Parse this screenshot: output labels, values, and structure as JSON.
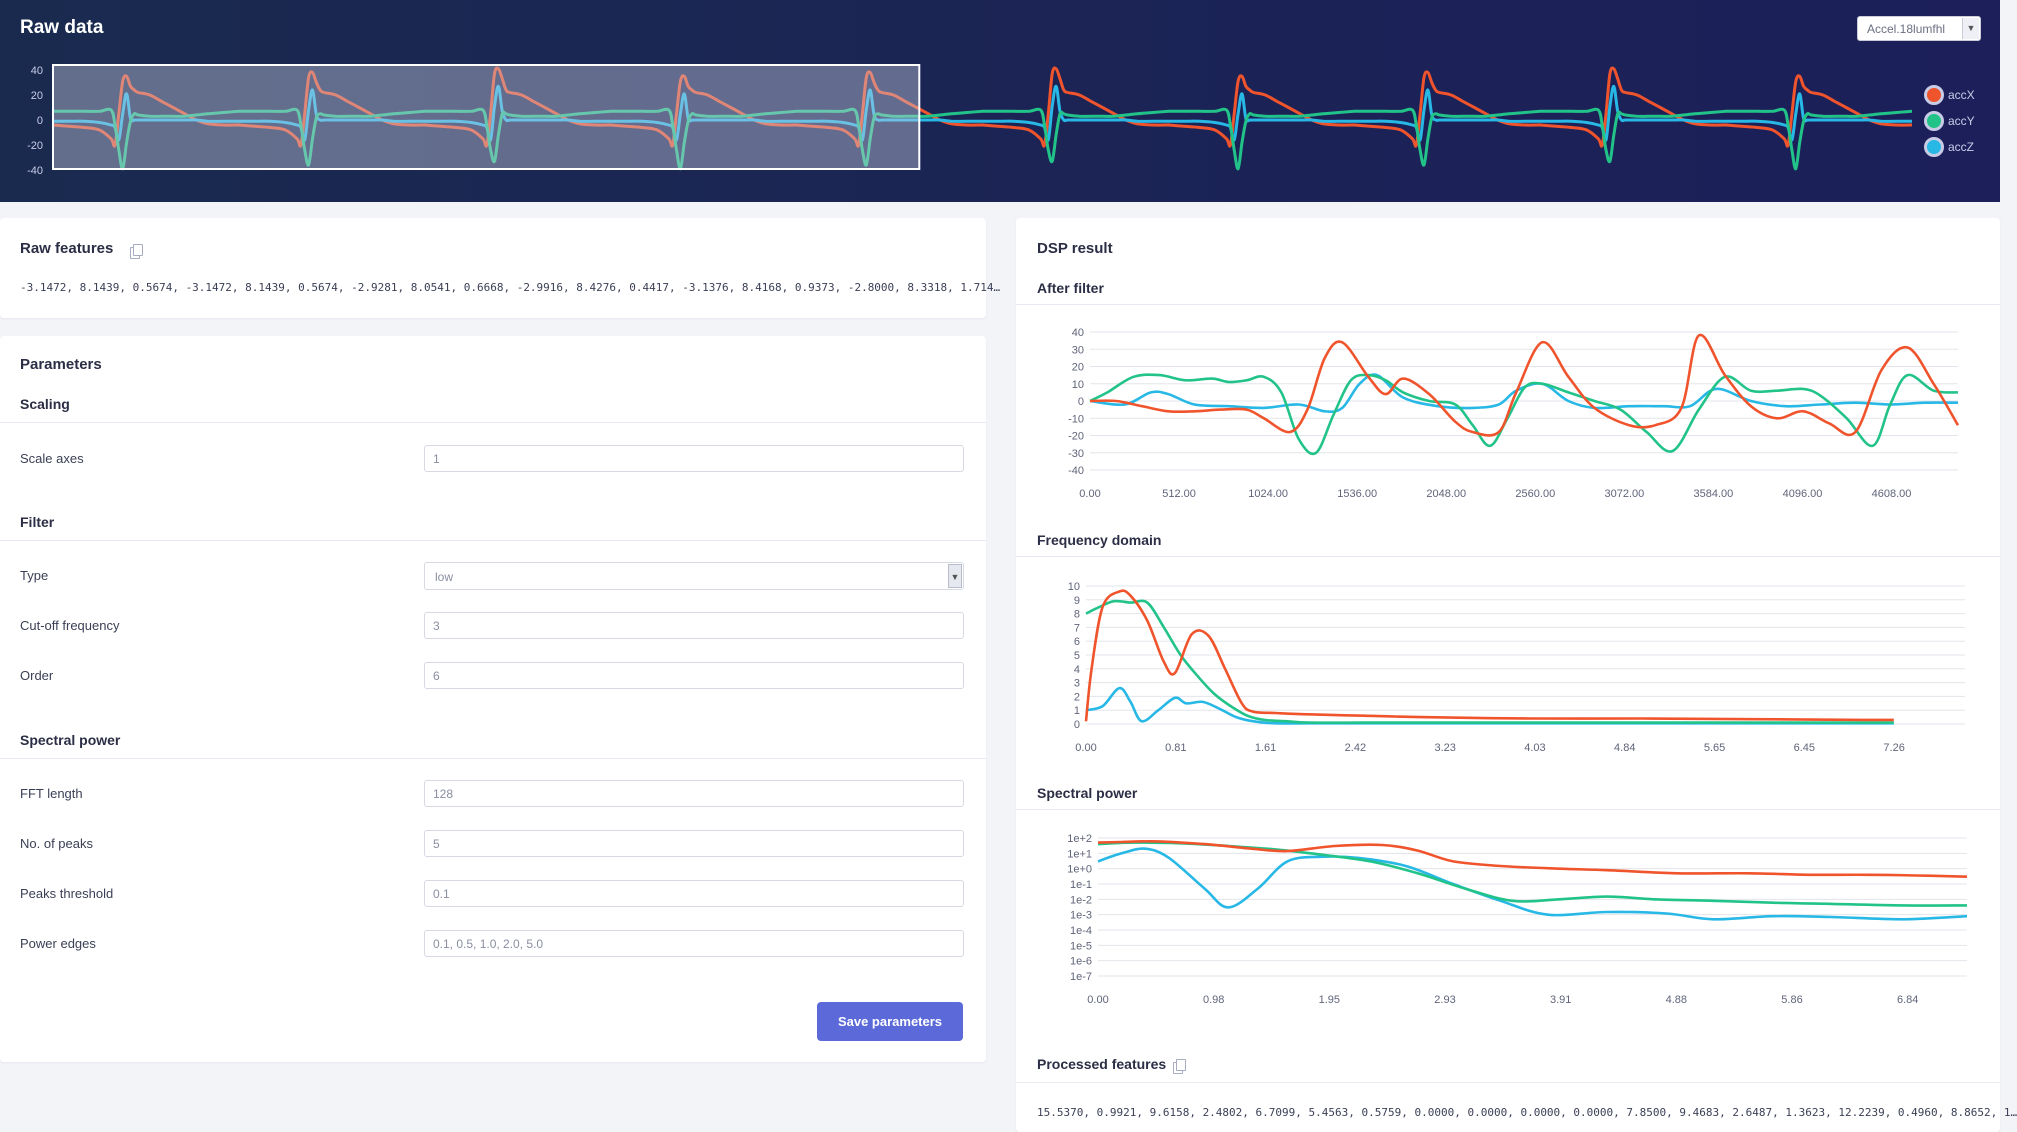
{
  "raw_data": {
    "title": "Raw data",
    "sample_select": "Accel.18lumfhl",
    "legend": [
      {
        "label": "accX",
        "color": "#f0542c"
      },
      {
        "label": "accY",
        "color": "#22c389"
      },
      {
        "label": "accZ",
        "color": "#27b8e6"
      }
    ]
  },
  "raw_features": {
    "title": "Raw features",
    "values": "-3.1472, 8.1439, 0.5674, -3.1472, 8.1439, 0.5674, -2.9281, 8.0541, 0.6668, -2.9916, 8.4276, 0.4417, -3.1376, 8.4168, 0.9373, -2.8000, 8.3318, 1.714…"
  },
  "parameters": {
    "title": "Parameters",
    "scaling": {
      "title": "Scaling",
      "scale_axes": {
        "label": "Scale axes",
        "value": "1"
      }
    },
    "filter": {
      "title": "Filter",
      "type": {
        "label": "Type",
        "value": "low"
      },
      "cutoff": {
        "label": "Cut-off frequency",
        "value": "3"
      },
      "order": {
        "label": "Order",
        "value": "6"
      }
    },
    "spectral_power": {
      "title": "Spectral power",
      "fft_length": {
        "label": "FFT length",
        "value": "128"
      },
      "num_peaks": {
        "label": "No. of peaks",
        "value": "5"
      },
      "peaks_threshold": {
        "label": "Peaks threshold",
        "value": "0.1"
      },
      "power_edges": {
        "label": "Power edges",
        "value": "0.1, 0.5, 1.0, 2.0, 5.0"
      }
    },
    "save_label": "Save parameters"
  },
  "dsp_result": {
    "title": "DSP result",
    "processed_features": {
      "title": "Processed features",
      "values": "15.5370, 0.9921, 9.6158, 2.4802, 6.7099, 5.4563, 0.5759, 0.0000, 0.0000, 0.0000, 0.0000, 7.8500, 9.4683, 2.6487, 1.3623, 12.2239, 0.4960, 8.8652, 1…"
    }
  },
  "chart_data": [
    {
      "type": "line",
      "title": "Raw data",
      "ylim": [
        -40,
        40
      ],
      "y_ticks": [
        "40",
        "20",
        "0",
        "-20",
        "-40"
      ],
      "series": [
        {
          "name": "accX",
          "color": "#f0542c"
        },
        {
          "name": "accY",
          "color": "#22c389"
        },
        {
          "name": "accZ",
          "color": "#27b8e6"
        }
      ],
      "x": [
        0,
        4,
        8,
        12,
        15,
        16,
        17,
        18,
        19,
        20,
        21,
        22,
        25,
        28,
        31,
        34,
        37,
        40,
        44,
        48
      ],
      "y_pattern": {
        "accX": [
          -4,
          -5,
          -6,
          -8,
          -15,
          -20,
          5,
          34,
          38,
          30,
          24,
          22,
          20,
          15,
          10,
          5,
          0,
          -3,
          -4,
          -4
        ],
        "accY": [
          7,
          7,
          7,
          7,
          8,
          -4,
          -24,
          -36,
          -15,
          2,
          5,
          4,
          3,
          3,
          3,
          3,
          4,
          5,
          6,
          7
        ],
        "accZ": [
          -1,
          -1,
          -1,
          -2,
          -4,
          -6,
          -16,
          8,
          24,
          4,
          0,
          0,
          0,
          0,
          0,
          0,
          0,
          -1,
          -1,
          -1
        ]
      },
      "pattern_period": 48,
      "x_max": 480,
      "selection": [
        0,
        0.466
      ],
      "grid": false
    },
    {
      "type": "line",
      "title": "After filter",
      "categories": [
        "0.00",
        "512.00",
        "1024.00",
        "1536.00",
        "2048.00",
        "2560.00",
        "3072.00",
        "3584.00",
        "4096.00",
        "4608.00"
      ],
      "ylim": [
        -40,
        40
      ],
      "y_ticks": [
        "40",
        "30",
        "20",
        "10",
        "0",
        "-10",
        "-20",
        "-30",
        "-40"
      ],
      "grid": true,
      "series": [
        {
          "name": "accX",
          "color": "#f0542c",
          "x": [
            0,
            150,
            300,
            450,
            600,
            750,
            900,
            1000,
            1150,
            1250,
            1350,
            1450,
            1600,
            1700,
            1800,
            1950,
            2100,
            2200,
            2350,
            2450,
            2600,
            2750,
            2900,
            3100,
            3250,
            3400,
            3500,
            3650,
            3800,
            3950,
            4100,
            4250,
            4400,
            4550,
            4700,
            4850,
            4990
          ],
          "y": [
            0,
            0,
            -3,
            -6,
            -6,
            -5,
            -5,
            -10,
            -18,
            -5,
            25,
            34,
            14,
            4,
            13,
            4,
            -12,
            -18,
            -18,
            5,
            34,
            14,
            -4,
            -14,
            -14,
            -4,
            38,
            15,
            -3,
            -10,
            -6,
            -13,
            -18,
            18,
            31,
            10,
            -14
          ]
        },
        {
          "name": "accY",
          "color": "#22c389",
          "x": [
            0,
            100,
            250,
            400,
            550,
            700,
            800,
            900,
            1000,
            1100,
            1200,
            1300,
            1400,
            1500,
            1600,
            1700,
            1800,
            1950,
            2100,
            2200,
            2300,
            2400,
            2500,
            2600,
            2750,
            2900,
            3050,
            3200,
            3350,
            3500,
            3650,
            3800,
            3950,
            4100,
            4200,
            4350,
            4500,
            4600,
            4700,
            4850,
            4990
          ],
          "y": [
            0,
            5,
            14,
            15,
            12,
            13,
            11,
            12,
            14,
            5,
            -22,
            -30,
            -8,
            12,
            15,
            12,
            5,
            0,
            -2,
            -14,
            -26,
            -10,
            8,
            10,
            5,
            0,
            -5,
            -18,
            -29,
            -5,
            14,
            6,
            6,
            7,
            3,
            -10,
            -26,
            -2,
            15,
            6,
            5
          ]
        },
        {
          "name": "accZ",
          "color": "#27b8e6",
          "x": [
            0,
            200,
            350,
            450,
            600,
            800,
            1000,
            1200,
            1350,
            1450,
            1550,
            1650,
            1800,
            2000,
            2200,
            2350,
            2450,
            2600,
            2750,
            2900,
            3100,
            3300,
            3450,
            3600,
            3800,
            4000,
            4200,
            4400,
            4600,
            4800,
            4990
          ],
          "y": [
            0,
            -2,
            5,
            4,
            -2,
            -3,
            -4,
            -2,
            -6,
            -4,
            10,
            15,
            2,
            -3,
            -4,
            -2,
            6,
            10,
            0,
            -4,
            -3,
            -3,
            -3,
            7,
            0,
            -3,
            -2,
            -1,
            -2,
            -1,
            -1
          ]
        }
      ]
    },
    {
      "type": "line",
      "title": "Frequency domain",
      "categories": [
        "0.00",
        "0.81",
        "1.61",
        "2.42",
        "3.23",
        "4.03",
        "4.84",
        "5.65",
        "6.45",
        "7.26"
      ],
      "ylim": [
        0,
        10
      ],
      "y_ticks": [
        "10",
        "9",
        "8",
        "7",
        "6",
        "5",
        "4",
        "3",
        "2",
        "1",
        "0"
      ],
      "grid": true,
      "series": [
        {
          "name": "accX",
          "color": "#f0542c",
          "x": [
            0,
            0.05,
            0.15,
            0.3,
            0.4,
            0.55,
            0.7,
            0.8,
            0.95,
            1.1,
            1.25,
            1.4,
            1.5,
            1.7,
            2.0,
            2.5,
            3.0,
            4.0,
            5.0,
            6.0,
            7.0,
            7.26
          ],
          "y": [
            0.2,
            4,
            8.5,
            9.6,
            9.3,
            7.5,
            4.5,
            3.7,
            6.5,
            6.4,
            4,
            1.5,
            0.9,
            0.8,
            0.7,
            0.6,
            0.5,
            0.4,
            0.4,
            0.35,
            0.3,
            0.3
          ]
        },
        {
          "name": "accY",
          "color": "#22c389",
          "x": [
            0,
            0.1,
            0.25,
            0.4,
            0.55,
            0.7,
            0.85,
            1.0,
            1.15,
            1.3,
            1.45,
            1.6,
            1.8,
            2.0,
            2.5,
            3.0,
            4.0,
            5.0,
            6.0,
            7.26
          ],
          "y": [
            8,
            8.4,
            8.9,
            8.8,
            8.8,
            7,
            5,
            3.5,
            2.2,
            1.3,
            0.6,
            0.3,
            0.2,
            0.1,
            0.1,
            0.1,
            0.1,
            0.1,
            0.1,
            0.1
          ]
        },
        {
          "name": "accZ",
          "color": "#27b8e6",
          "x": [
            0,
            0.15,
            0.3,
            0.4,
            0.5,
            0.65,
            0.8,
            0.9,
            1.05,
            1.2,
            1.35,
            1.5,
            1.7,
            2.0,
            3.0,
            4.0,
            5.0,
            6.0,
            7.26
          ],
          "y": [
            1,
            1.3,
            2.6,
            1.6,
            0.2,
            1,
            1.9,
            1.5,
            1.6,
            1.1,
            0.5,
            0.2,
            0.05,
            0.05,
            0.05,
            0.05,
            0.05,
            0.05,
            0.05
          ]
        }
      ]
    },
    {
      "type": "line",
      "title": "Spectral power",
      "categories": [
        "0.00",
        "0.98",
        "1.95",
        "2.93",
        "3.91",
        "4.88",
        "5.86",
        "6.84"
      ],
      "y_scale": "log",
      "ylim": [
        1e-07,
        100
      ],
      "y_ticks": [
        "1e+2",
        "1e+1",
        "1e+0",
        "1e-1",
        "1e-2",
        "1e-3",
        "1e-4",
        "1e-5",
        "1e-6",
        "1e-7"
      ],
      "grid": true,
      "series": [
        {
          "name": "accX",
          "color": "#f0542c",
          "x": [
            0,
            0.2,
            0.5,
            0.9,
            1.3,
            1.6,
            2.0,
            2.4,
            2.7,
            3.0,
            3.4,
            3.9,
            4.3,
            4.9,
            5.5,
            6.0,
            6.5,
            7.0,
            7.34
          ],
          "y": [
            50,
            55,
            60,
            40,
            20,
            14,
            30,
            35,
            15,
            3,
            1.5,
            1,
            0.8,
            0.5,
            0.5,
            0.4,
            0.4,
            0.35,
            0.3
          ]
        },
        {
          "name": "accY",
          "color": "#22c389",
          "x": [
            0,
            0.3,
            0.7,
            1.1,
            1.5,
            1.9,
            2.3,
            2.7,
            3.1,
            3.5,
            3.9,
            4.3,
            4.7,
            5.2,
            5.7,
            6.2,
            6.8,
            7.34
          ],
          "y": [
            40,
            50,
            45,
            30,
            18,
            8,
            3,
            0.5,
            0.05,
            0.008,
            0.01,
            0.015,
            0.01,
            0.008,
            0.006,
            0.005,
            0.004,
            0.004
          ]
        },
        {
          "name": "accZ",
          "color": "#27b8e6",
          "x": [
            0,
            0.2,
            0.4,
            0.6,
            0.9,
            1.1,
            1.35,
            1.6,
            1.9,
            2.2,
            2.6,
            3.0,
            3.4,
            3.8,
            4.3,
            4.8,
            5.2,
            5.7,
            6.2,
            6.8,
            7.34
          ],
          "y": [
            3,
            10,
            20,
            5,
            0.05,
            0.003,
            0.05,
            3,
            6,
            5,
            1.5,
            0.1,
            0.008,
            0.001,
            0.0015,
            0.0012,
            0.0005,
            0.0008,
            0.0007,
            0.0005,
            0.0008
          ]
        }
      ]
    }
  ]
}
